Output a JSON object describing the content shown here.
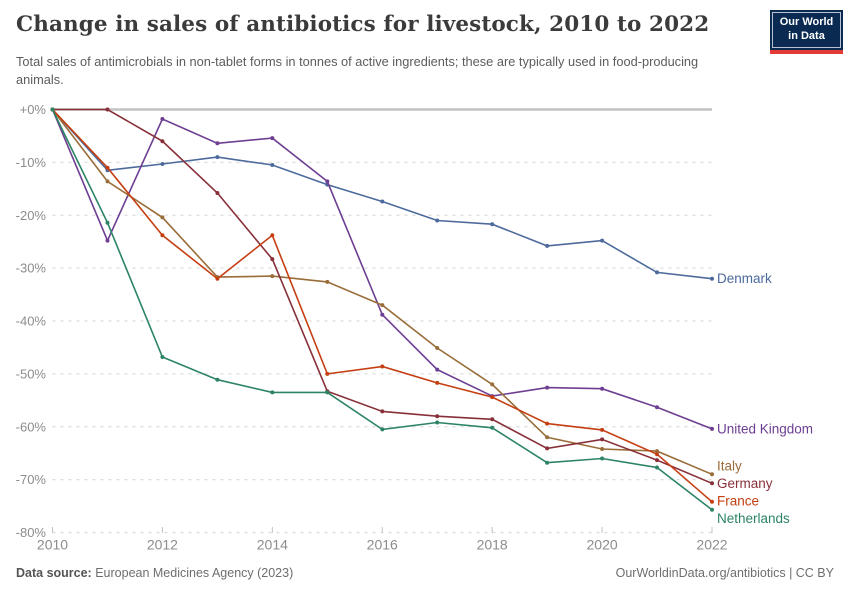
{
  "header": {
    "title": "Change in sales of antibiotics for livestock, 2010 to 2022",
    "subtitle": "Total sales of antimicrobials in non-tablet forms in tonnes of active ingredients; these are typically used in food-producing animals.",
    "logo": {
      "line1": "Our World",
      "line2": "in Data"
    }
  },
  "footer": {
    "source_label": "Data source:",
    "source_value": " European Medicines Agency (2023)",
    "credit": "OurWorldinData.org/antibiotics | CC BY"
  },
  "chart_data": {
    "type": "line",
    "x": [
      2010,
      2011,
      2012,
      2013,
      2014,
      2015,
      2016,
      2017,
      2018,
      2019,
      2020,
      2021,
      2022
    ],
    "x_ticks": [
      2010,
      2012,
      2014,
      2016,
      2018,
      2020,
      2022
    ],
    "y_ticks": [
      "+0%",
      "-10%",
      "-20%",
      "-30%",
      "-40%",
      "-50%",
      "-60%",
      "-70%",
      "-80%"
    ],
    "y_tick_values": [
      0,
      -10,
      -20,
      -30,
      -40,
      -50,
      -60,
      -70,
      -80
    ],
    "ylim": [
      -80,
      0
    ],
    "grid": true,
    "legend_position": "end-of-line",
    "series": [
      {
        "name": "Denmark",
        "color": "#4C6A9C",
        "values": [
          0,
          -11.5,
          -10.3,
          -9.0,
          -10.5,
          -14.2,
          -17.4,
          -21.0,
          -21.7,
          -25.8,
          -24.8,
          -30.8,
          -32.0
        ]
      },
      {
        "name": "United Kingdom",
        "color": "#6D3E91",
        "values": [
          0,
          -24.8,
          -1.8,
          -6.4,
          -5.4,
          -13.6,
          -38.8,
          -49.2,
          -54.2,
          -52.6,
          -52.8,
          -56.3,
          -60.4
        ]
      },
      {
        "name": "Italy",
        "color": "#996D39",
        "values": [
          0,
          -13.6,
          -20.4,
          -31.7,
          -31.5,
          -32.6,
          -37.0,
          -45.1,
          -52.0,
          -62.0,
          -64.2,
          -64.6,
          -69.0
        ]
      },
      {
        "name": "Germany",
        "color": "#883039",
        "values": [
          0,
          0,
          -6.0,
          -15.8,
          -28.3,
          -53.3,
          -57.1,
          -58.0,
          -58.6,
          -64.1,
          -62.4,
          -66.3,
          -70.7
        ]
      },
      {
        "name": "France",
        "color": "#C53F12",
        "values": [
          0,
          -11.0,
          -23.8,
          -32.0,
          -23.8,
          -50.0,
          -48.6,
          -51.7,
          -54.4,
          -59.4,
          -60.6,
          -65.2,
          -74.2
        ]
      },
      {
        "name": "Netherlands",
        "color": "#2C8465",
        "values": [
          0,
          -21.4,
          -46.8,
          -51.1,
          -53.5,
          -53.5,
          -60.5,
          -59.2,
          -60.2,
          -66.8,
          -66.0,
          -67.7,
          -75.7
        ]
      }
    ]
  }
}
